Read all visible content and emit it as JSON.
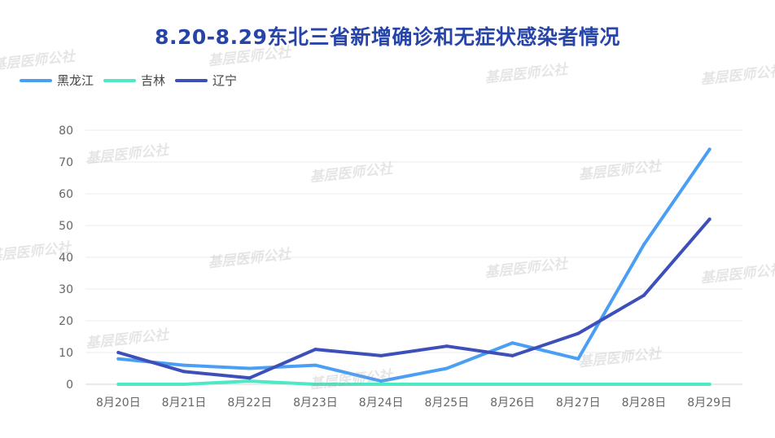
{
  "title": "8.20-8.29东北三省新增确诊和无症状感染者情况",
  "watermark_text": "基层医师公社",
  "chart_data": {
    "type": "line",
    "title": "8.20-8.29东北三省新增确诊和无症状感染者情况",
    "xlabel": "",
    "ylabel": "",
    "ylim": [
      0,
      80
    ],
    "yticks": [
      0,
      10,
      20,
      30,
      40,
      50,
      60,
      70,
      80
    ],
    "grid": true,
    "legend_position": "top-left",
    "categories": [
      "8月20日",
      "8月21日",
      "8月22日",
      "8月23日",
      "8月24日",
      "8月25日",
      "8月26日",
      "8月27日",
      "8月28日",
      "8月29日"
    ],
    "series": [
      {
        "name": "黑龙江",
        "color": "#4a9ff5",
        "values": [
          8,
          6,
          5,
          6,
          1,
          5,
          13,
          8,
          44,
          74
        ]
      },
      {
        "name": "吉林",
        "color": "#4ee8c4",
        "values": [
          0,
          0,
          1,
          0,
          0,
          0,
          0,
          0,
          0,
          0
        ]
      },
      {
        "name": "辽宁",
        "color": "#3d4fb8",
        "values": [
          10,
          4,
          2,
          11,
          9,
          12,
          9,
          16,
          28,
          52
        ]
      }
    ]
  }
}
